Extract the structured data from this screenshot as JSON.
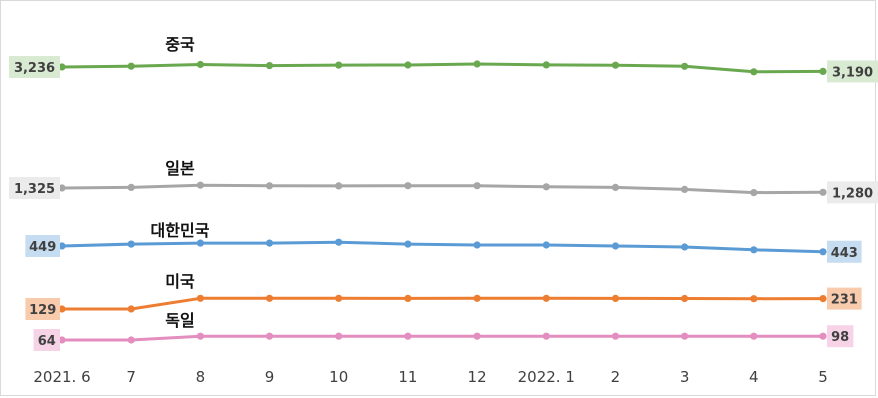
{
  "chart_data": {
    "type": "line",
    "title": "",
    "xlabel": "",
    "ylabel": "",
    "categories": [
      "2021. 6",
      "7",
      "8",
      "9",
      "10",
      "11",
      "12",
      "2022. 1",
      "2",
      "3",
      "4",
      "5"
    ],
    "grid": false,
    "legend": "none",
    "series": [
      {
        "name": "중국",
        "color": "#6aa84f",
        "label_bg": "#d9ead3",
        "values": [
          3236,
          3244,
          3262,
          3251,
          3256,
          3257,
          3267,
          3258,
          3255,
          3243,
          3186,
          3190
        ],
        "first_label": "3,236",
        "last_label": "3,190"
      },
      {
        "name": "일본",
        "color": "#a6a6a6",
        "label_bg": "#ebebeb",
        "values": [
          1325,
          1331,
          1354,
          1348,
          1347,
          1349,
          1349,
          1337,
          1331,
          1310,
          1277,
          1280
        ],
        "first_label": "1,325",
        "last_label": "1,280"
      },
      {
        "name": "대한민국",
        "color": "#5b9bd5",
        "label_bg": "#c6dcf0",
        "values": [
          449,
          451,
          452,
          452,
          453,
          451,
          450,
          450,
          449,
          448,
          445,
          443
        ],
        "first_label": "449",
        "last_label": "443"
      },
      {
        "name": "미국",
        "color": "#ed7d31",
        "label_bg": "#f8cbad",
        "values": [
          129,
          129,
          234,
          234,
          234,
          233,
          234,
          234,
          233,
          232,
          230,
          231
        ],
        "first_label": "129",
        "last_label": "231"
      },
      {
        "name": "독일",
        "color": "#e38ebe",
        "label_bg": "#f6d3e6",
        "values": [
          64,
          64,
          98,
          98,
          98,
          98,
          98,
          98,
          98,
          98,
          98,
          98
        ],
        "first_label": "64",
        "last_label": "98"
      }
    ]
  }
}
